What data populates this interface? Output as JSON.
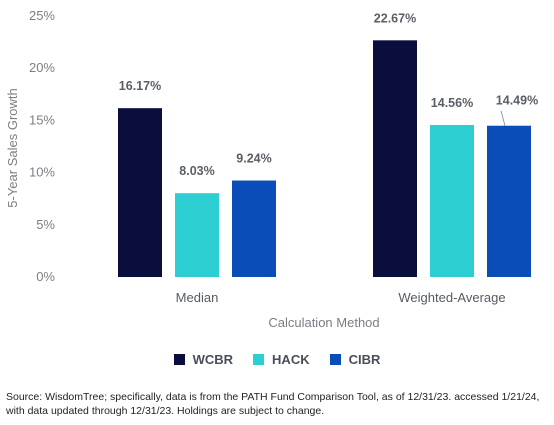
{
  "chart_data": {
    "type": "bar",
    "categories": [
      "Median",
      "Weighted-Average"
    ],
    "series": [
      {
        "name": "WCBR",
        "values": [
          16.17,
          22.67
        ],
        "color": "#0b0d3d"
      },
      {
        "name": "HACK",
        "values": [
          8.03,
          14.56
        ],
        "color": "#2ecfd2"
      },
      {
        "name": "CIBR",
        "values": [
          9.24,
          14.49
        ],
        "color": "#0a4cb8"
      }
    ],
    "data_labels": [
      [
        "16.17%",
        "22.67%"
      ],
      [
        "8.03%",
        "14.56%"
      ],
      [
        "9.24%",
        "14.49%"
      ]
    ],
    "title": "",
    "xlabel": "Calculation Method",
    "ylabel": "5-Year Sales Growth",
    "ylim": [
      0,
      25
    ],
    "yticks": [
      "0%",
      "5%",
      "10%",
      "15%",
      "20%",
      "25%"
    ],
    "grid": false,
    "legend_position": "bottom"
  },
  "legend": [
    {
      "label": "WCBR",
      "color": "#0b0d3d"
    },
    {
      "label": "HACK",
      "color": "#2ecfd2"
    },
    {
      "label": "CIBR",
      "color": "#0a4cb8"
    }
  ],
  "source_text": "Source: WisdomTree; specifically, data is from the PATH Fund Comparison Tool, as of 12/31/23. accessed 1/21/24, with data updated through 12/31/23. Holdings are subject to change."
}
